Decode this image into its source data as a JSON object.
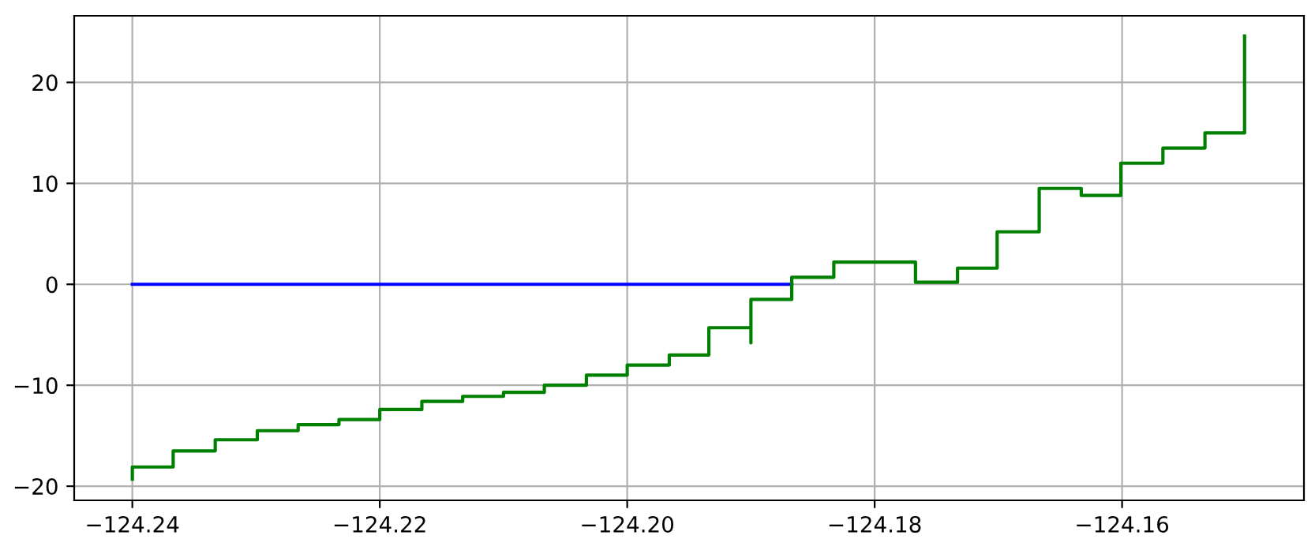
{
  "chart_data": {
    "type": "step",
    "xlim": [
      -124.2447,
      -124.1453
    ],
    "ylim": [
      -21.4,
      26.6
    ],
    "xticks": [
      {
        "value": -124.24,
        "label": "−124.24"
      },
      {
        "value": -124.22,
        "label": "−124.22"
      },
      {
        "value": -124.2,
        "label": "−124.20"
      },
      {
        "value": -124.18,
        "label": "−124.18"
      },
      {
        "value": -124.16,
        "label": "−124.16"
      }
    ],
    "yticks": [
      {
        "value": -20,
        "label": "−20"
      },
      {
        "value": -10,
        "label": "−10"
      },
      0,
      10,
      20
    ],
    "grid": true,
    "series": [
      {
        "type": "line",
        "color": "#0000ff",
        "x": [
          -124.24,
          -124.1867
        ],
        "values": [
          0,
          0
        ]
      },
      {
        "color": "#008000",
        "x": [
          -124.24,
          -124.24,
          -124.2367,
          -124.2333,
          -124.2299,
          -124.2266,
          -124.2233,
          -124.22,
          -124.2166,
          -124.2133,
          -124.21,
          -124.2067,
          -124.2033,
          -124.2,
          -124.1966,
          -124.1934,
          -124.19,
          -124.19,
          -124.1867,
          -124.1833,
          -124.1767,
          -124.1733,
          -124.1701,
          -124.1667,
          -124.1633,
          -124.1601,
          -124.1567,
          -124.1533,
          -124.1501,
          -124.1501
        ],
        "values": [
          -19.3,
          -18.1,
          -16.5,
          -15.4,
          -14.5,
          -13.9,
          -13.4,
          -12.4,
          -11.6,
          -11.1,
          -10.7,
          -10.0,
          -9.0,
          -8.0,
          -7.0,
          -4.3,
          -5.8,
          -1.5,
          0.7,
          2.2,
          0.2,
          1.6,
          5.2,
          9.5,
          8.8,
          12.0,
          13.5,
          15.0,
          15.0,
          24.6
        ]
      }
    ]
  }
}
